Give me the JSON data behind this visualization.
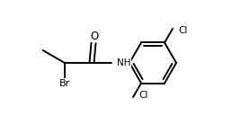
{
  "figsize": [
    2.58,
    1.38
  ],
  "dpi": 100,
  "background_color": "#ffffff",
  "bond_color": "#000000",
  "lw": 1.4,
  "atoms": {
    "O": {
      "label": "O",
      "color": "#000000"
    },
    "N": {
      "label": "NH",
      "color": "#000000"
    },
    "Br": {
      "label": "Br",
      "color": "#000000"
    },
    "Cl1": {
      "label": "Cl",
      "color": "#000000"
    },
    "Cl2": {
      "label": "Cl",
      "color": "#000000"
    }
  },
  "font_size": 7.5
}
